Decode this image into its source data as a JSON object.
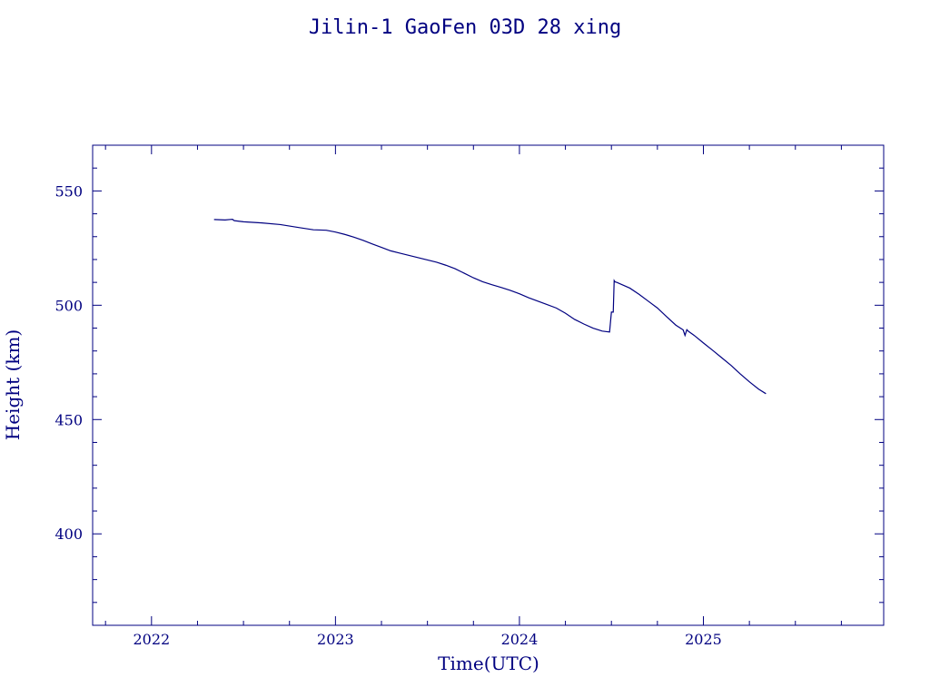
{
  "colors": {
    "ink": "#000080",
    "background": "#ffffff"
  },
  "chart_data": {
    "type": "line",
    "title": "Jilin-1 GaoFen 03D 28 xing",
    "xlabel": "Time(UTC)",
    "ylabel": "Height (km)",
    "xlim": [
      2021.68,
      2025.98
    ],
    "ylim": [
      360,
      570
    ],
    "x_major_ticks": [
      2022,
      2023,
      2024,
      2025
    ],
    "x_tick_labels": [
      "2022",
      "2023",
      "2024",
      "2025"
    ],
    "y_major_ticks": [
      400,
      450,
      500,
      550
    ],
    "y_tick_labels": [
      "400",
      "450",
      "500",
      "550"
    ],
    "grid": false,
    "series": [
      {
        "x": [
          2022.34,
          2022.4,
          2022.44,
          2022.45,
          2022.46,
          2022.5,
          2022.6,
          2022.7,
          2022.8,
          2022.88,
          2022.95,
          2023.0,
          2023.05,
          2023.1,
          2023.15,
          2023.2,
          2023.25,
          2023.3,
          2023.35,
          2023.4,
          2023.45,
          2023.5,
          2023.55,
          2023.6,
          2023.65,
          2023.7,
          2023.75,
          2023.8,
          2023.85,
          2023.9,
          2023.95,
          2024.0,
          2024.05,
          2024.1,
          2024.15,
          2024.2,
          2024.25,
          2024.3,
          2024.35,
          2024.4,
          2024.45,
          2024.49,
          2024.5,
          2024.51,
          2024.515,
          2024.52,
          2024.53,
          2024.6,
          2024.65,
          2024.7,
          2024.75,
          2024.8,
          2024.85,
          2024.89,
          2024.9,
          2024.91,
          2024.92,
          2024.95,
          2025.0,
          2025.05,
          2025.1,
          2025.15,
          2025.2,
          2025.25,
          2025.3,
          2025.34
        ],
        "y": [
          537.5,
          537.3,
          537.6,
          537.0,
          536.9,
          536.5,
          536.0,
          535.3,
          534.0,
          533.0,
          532.8,
          532.0,
          531.0,
          529.8,
          528.4,
          526.8,
          525.3,
          523.8,
          522.8,
          521.8,
          520.8,
          519.8,
          518.8,
          517.5,
          516.0,
          514.0,
          512.0,
          510.3,
          509.0,
          507.8,
          506.5,
          505.0,
          503.3,
          501.8,
          500.3,
          498.8,
          496.5,
          493.8,
          491.8,
          490.0,
          488.7,
          488.3,
          497.0,
          497.0,
          510.8,
          510.2,
          510.0,
          507.5,
          504.8,
          501.8,
          498.8,
          495.0,
          491.3,
          489.2,
          486.8,
          489.3,
          488.5,
          486.8,
          483.5,
          480.3,
          477.0,
          473.7,
          470.0,
          466.5,
          463.3,
          461.3
        ]
      }
    ]
  }
}
